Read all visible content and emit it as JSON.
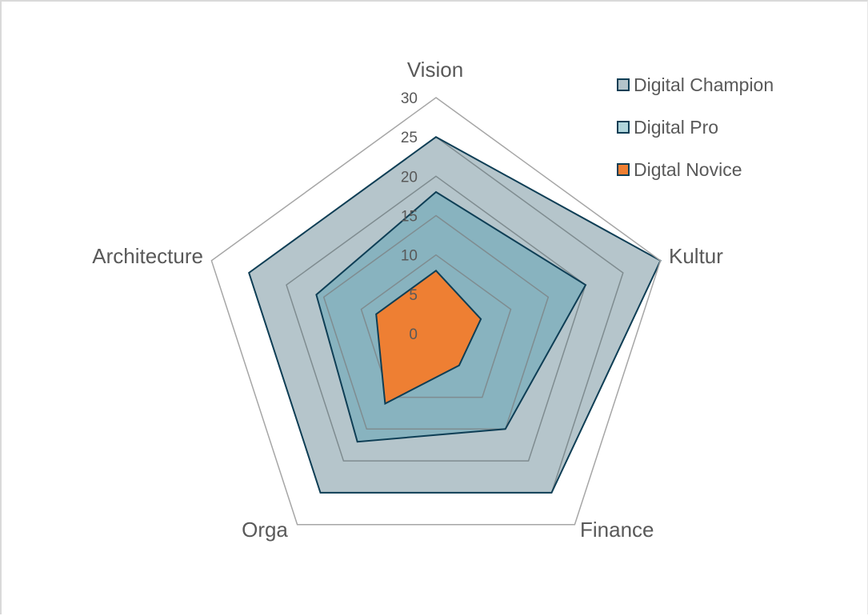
{
  "chart_data": {
    "type": "radar",
    "title": "",
    "categories": [
      "Vision",
      "Kultur",
      "Finance",
      "Orga",
      "Architecture"
    ],
    "series": [
      {
        "name": "Digital Champion",
        "values": [
          25,
          30,
          25,
          25,
          25
        ],
        "fill": "#a3b6be",
        "fill_opacity": 0.8,
        "legend_fill": "#b3c4ca",
        "stroke": "#0e3e55"
      },
      {
        "name": "Digital Pro",
        "values": [
          18,
          20,
          15,
          17,
          16
        ],
        "fill": "#6ba7b8",
        "fill_opacity": 0.6,
        "legend_fill": "#b0d5dc",
        "stroke": "#0e3e55"
      },
      {
        "name": "Digtal Novice",
        "values": [
          8,
          6,
          5,
          11,
          8
        ],
        "fill": "#ee7f33",
        "fill_opacity": 1,
        "legend_fill": "#ee7f33",
        "stroke": "#0e3e55"
      }
    ],
    "radial_axis": {
      "min": 0,
      "max": 30,
      "step": 5,
      "tick_labels": [
        "0",
        "5",
        "10",
        "15",
        "20",
        "25",
        "30"
      ]
    },
    "grid": true,
    "legend_position": "top-right"
  },
  "colors": {
    "outer_grid": "#a6a6a6",
    "inner_grid": "#7f8c90",
    "text": "#595959",
    "series_stroke": "#0e3e55"
  }
}
